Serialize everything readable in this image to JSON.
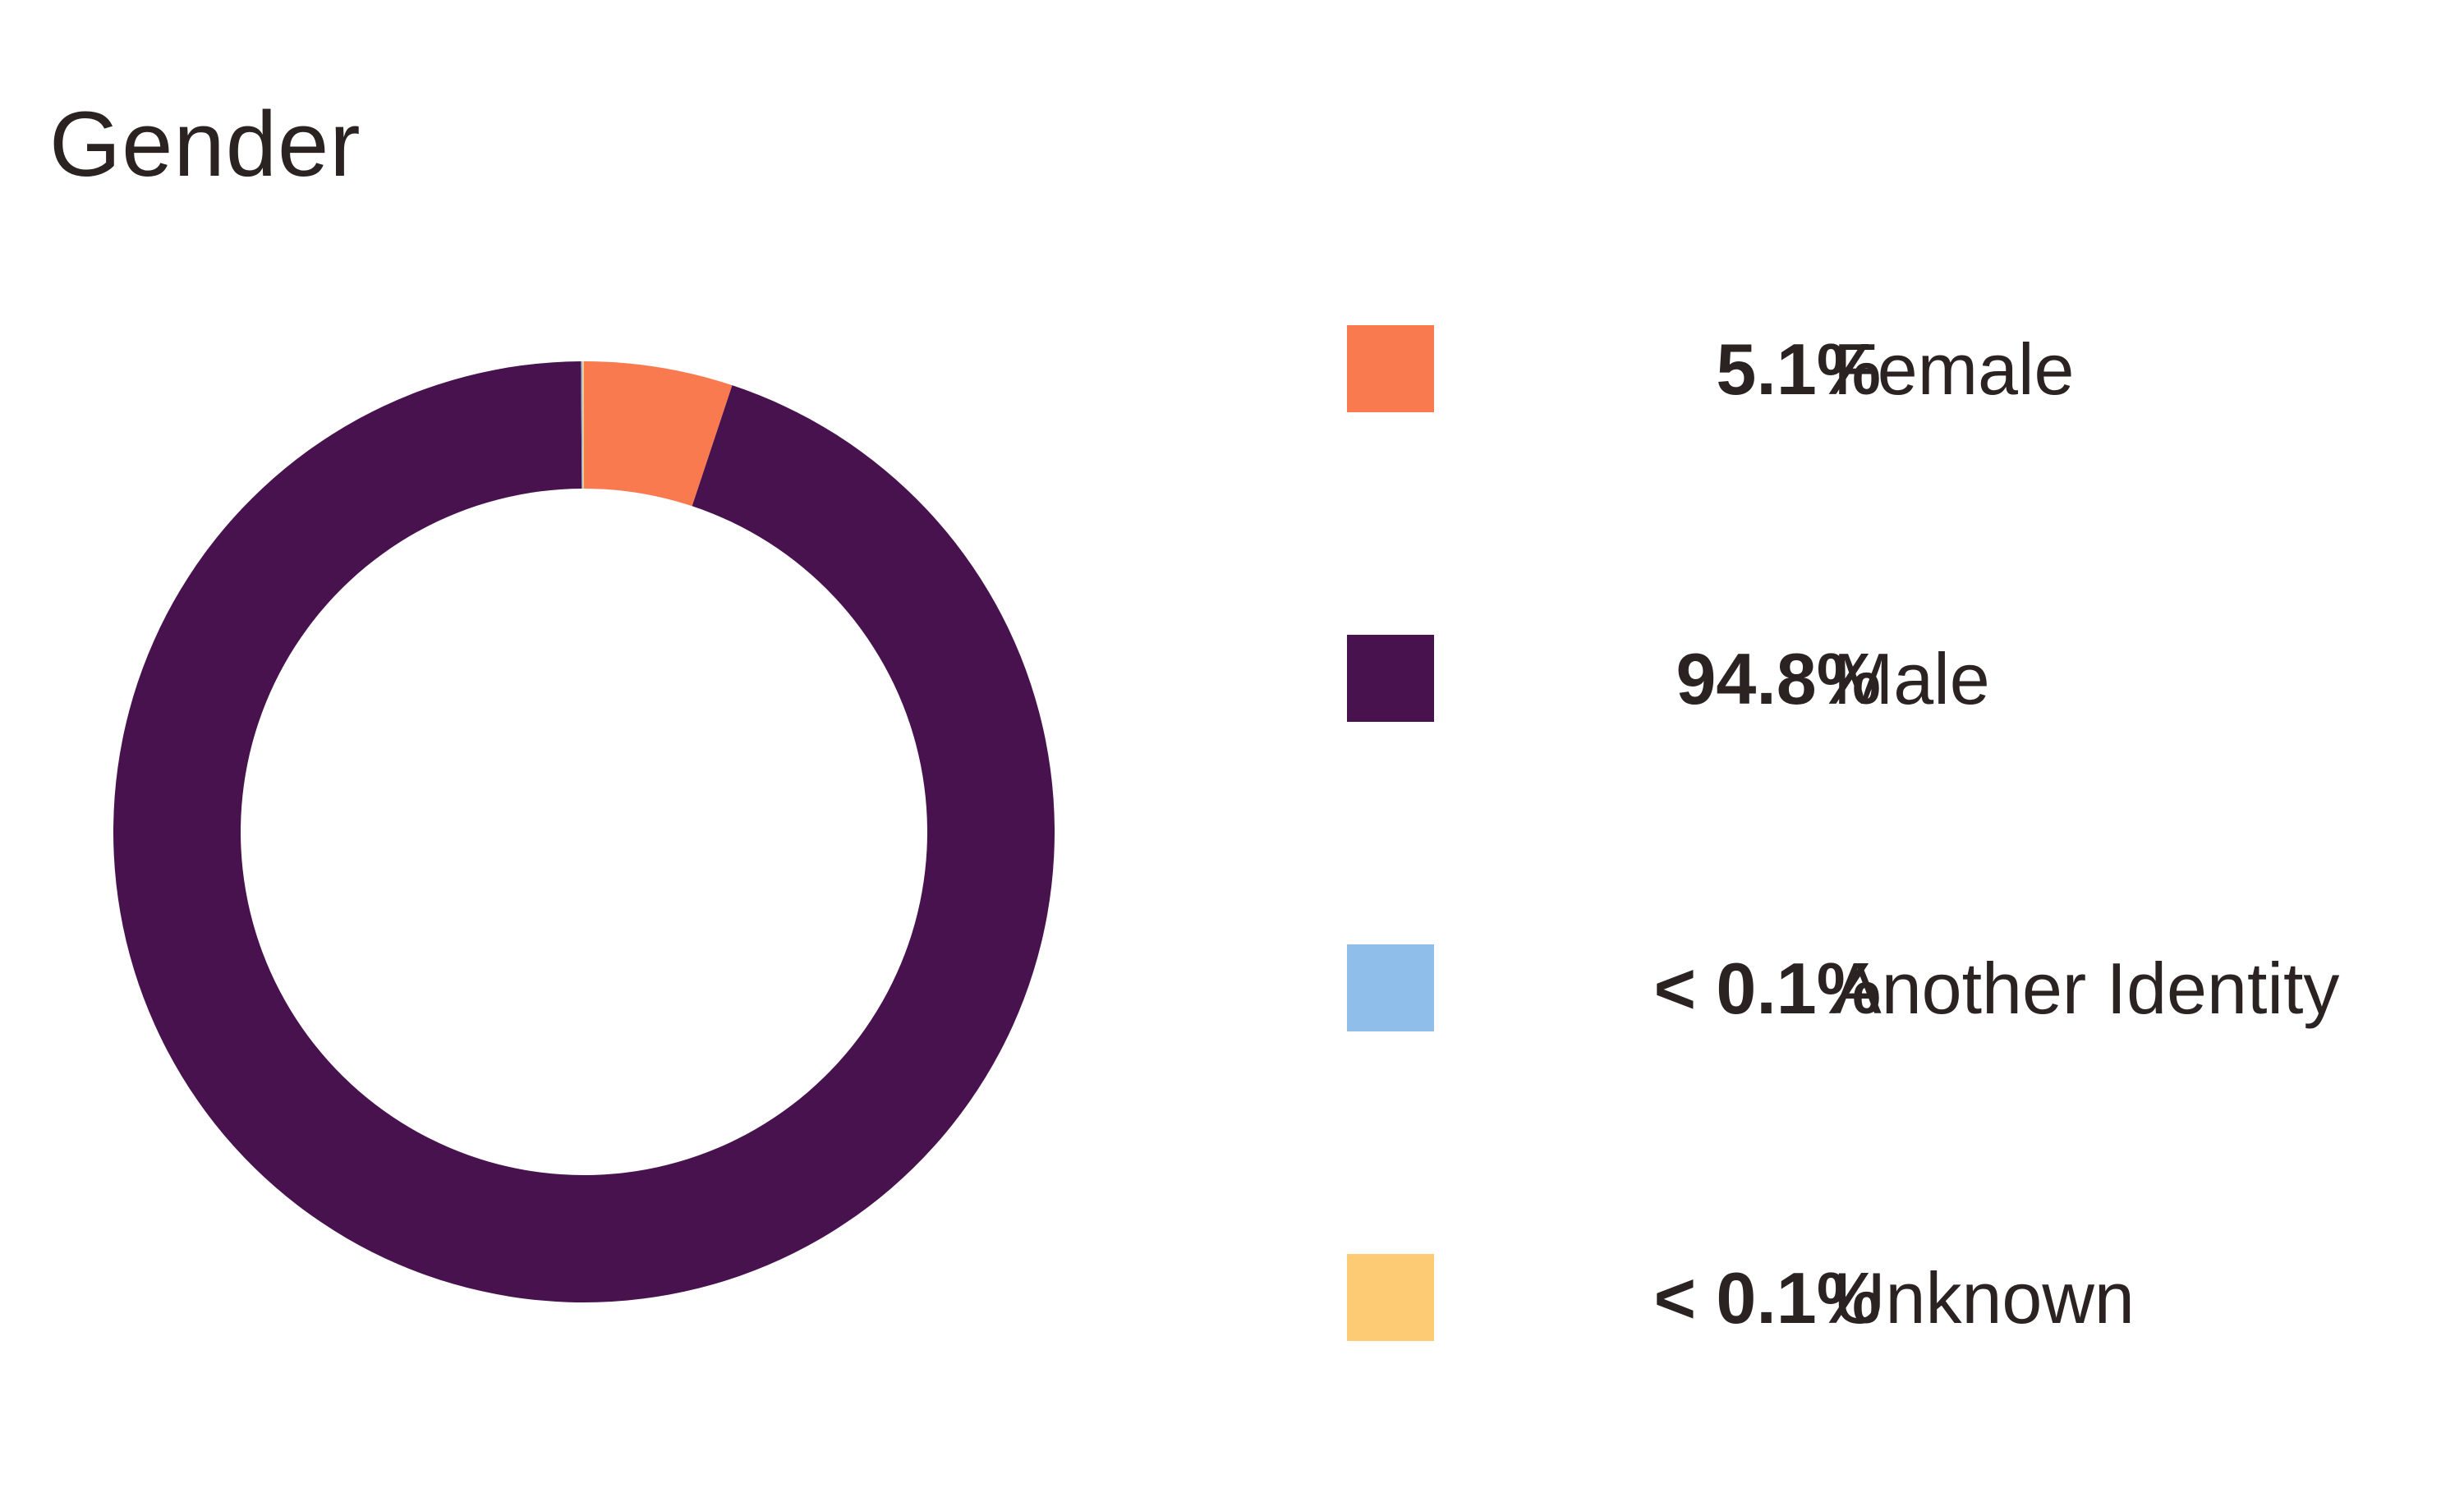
{
  "chart_data": {
    "type": "pie",
    "title": "Gender",
    "categories": [
      "Female",
      "Male",
      "Another Identity",
      "Unknown"
    ],
    "values": [
      5.1,
      94.8,
      0.05,
      0.05
    ],
    "value_labels": [
      "5.1%",
      "94.8%",
      "< 0.1%",
      "< 0.1%"
    ],
    "colors": [
      "#fa7a50",
      "#48124e",
      "#8ebee9",
      "#fccb73"
    ],
    "donut": true,
    "legend_position": "right"
  }
}
